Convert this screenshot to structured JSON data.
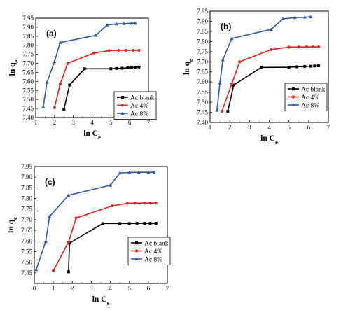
{
  "chart_data": [
    {
      "type": "line",
      "panel_label": "(a)",
      "xlabel": "ln Ce",
      "ylabel": "ln qe",
      "xlim": [
        1,
        7
      ],
      "ylim": [
        7.4,
        7.95
      ],
      "xticks": [
        "1",
        "2",
        "3",
        "4",
        "5",
        "6",
        "7"
      ],
      "yticks": [
        "7.40",
        "7.45",
        "7.50",
        "7.55",
        "7.60",
        "7.65",
        "7.70",
        "7.75",
        "7.80",
        "7.85",
        "7.90",
        "7.95"
      ],
      "legend_position": "lower-right",
      "series": [
        {
          "name": "Ac blank",
          "color": "#000000",
          "marker": "square",
          "x": [
            2.5,
            2.8,
            3.6,
            5.0,
            5.3,
            5.6,
            5.9,
            6.1,
            6.3,
            6.5
          ],
          "y": [
            7.445,
            7.58,
            7.67,
            7.67,
            7.672,
            7.673,
            7.675,
            7.677,
            7.679,
            7.68
          ]
        },
        {
          "name": "Ac 4%",
          "color": "#e8201c",
          "marker": "circle",
          "x": [
            2.0,
            2.3,
            2.7,
            4.1,
            4.9,
            5.4,
            5.8,
            6.2,
            6.5
          ],
          "y": [
            7.455,
            7.585,
            7.7,
            7.757,
            7.77,
            7.772,
            7.772,
            7.772,
            7.772
          ]
        },
        {
          "name": "Ac 8%",
          "color": "#2f56a6",
          "marker": "triangle",
          "x": [
            1.4,
            1.6,
            2.0,
            2.3,
            4.2,
            4.8,
            5.3,
            5.7,
            6.1,
            6.3
          ],
          "y": [
            7.46,
            7.595,
            7.71,
            7.815,
            7.855,
            7.912,
            7.918,
            7.92,
            7.922,
            7.922
          ]
        }
      ]
    },
    {
      "type": "line",
      "panel_label": "(b)",
      "xlabel": "ln Ce",
      "ylabel": "ln qe",
      "xlim": [
        1,
        7
      ],
      "ylim": [
        7.4,
        7.95
      ],
      "xticks": [
        "1",
        "2",
        "3",
        "4",
        "5",
        "6",
        "7"
      ],
      "yticks": [
        "7.40",
        "7.45",
        "7.50",
        "7.55",
        "7.60",
        "7.65",
        "7.70",
        "7.75",
        "7.80",
        "7.85",
        "7.90",
        "7.95"
      ],
      "legend_position": "lower-right",
      "series": [
        {
          "name": "Ac blank",
          "color": "#000000",
          "marker": "square",
          "x": [
            1.9,
            2.2,
            3.6,
            5.0,
            5.4,
            5.8,
            6.1,
            6.3,
            6.5
          ],
          "y": [
            7.455,
            7.585,
            7.672,
            7.673,
            7.675,
            7.677,
            7.678,
            7.679,
            7.68
          ]
        },
        {
          "name": "Ac 4%",
          "color": "#e8201c",
          "marker": "circle",
          "x": [
            1.6,
            2.1,
            2.5,
            4.1,
            5.0,
            5.5,
            5.9,
            6.2,
            6.5
          ],
          "y": [
            7.455,
            7.59,
            7.7,
            7.76,
            7.772,
            7.773,
            7.773,
            7.773,
            7.773
          ]
        },
        {
          "name": "Ac 8%",
          "color": "#2f56a6",
          "marker": "triangle",
          "x": [
            1.35,
            1.5,
            1.65,
            2.1,
            4.1,
            4.7,
            5.3,
            5.8,
            6.1
          ],
          "y": [
            7.46,
            7.595,
            7.71,
            7.815,
            7.86,
            7.912,
            7.918,
            7.92,
            7.922
          ]
        }
      ]
    },
    {
      "type": "line",
      "panel_label": "(c)",
      "xlabel": "ln Ce",
      "ylabel": "ln qe",
      "xlim": [
        0,
        7
      ],
      "ylim": [
        7.4,
        7.95
      ],
      "xticks": [
        "0",
        "1",
        "2",
        "3",
        "4",
        "5",
        "6",
        "7"
      ],
      "yticks": [
        "7.45",
        "7.50",
        "7.55",
        "7.60",
        "7.65",
        "7.70",
        "7.75",
        "7.80",
        "7.85",
        "7.90",
        "7.95"
      ],
      "legend_position": "lower-right",
      "series": [
        {
          "name": "Ac blank",
          "color": "#000000",
          "marker": "square",
          "x": [
            1.8,
            1.85,
            3.6,
            4.5,
            5.0,
            5.4,
            5.8,
            6.1,
            6.4
          ],
          "y": [
            7.455,
            7.59,
            7.682,
            7.682,
            7.682,
            7.683,
            7.683,
            7.683,
            7.683
          ]
        },
        {
          "name": "Ac 4%",
          "color": "#e8201c",
          "marker": "circle",
          "x": [
            1.0,
            1.8,
            2.2,
            4.1,
            4.9,
            5.3,
            5.8,
            6.1,
            6.4
          ],
          "y": [
            7.46,
            7.595,
            7.708,
            7.765,
            7.777,
            7.778,
            7.778,
            7.778,
            7.778
          ]
        },
        {
          "name": "Ac 8%",
          "color": "#2f56a6",
          "marker": "triangle",
          "x": [
            0.1,
            0.6,
            0.8,
            1.8,
            4.0,
            4.5,
            5.0,
            5.5,
            6.0,
            6.3
          ],
          "y": [
            7.465,
            7.598,
            7.715,
            7.815,
            7.862,
            7.92,
            7.922,
            7.923,
            7.923,
            7.923
          ]
        }
      ]
    }
  ]
}
